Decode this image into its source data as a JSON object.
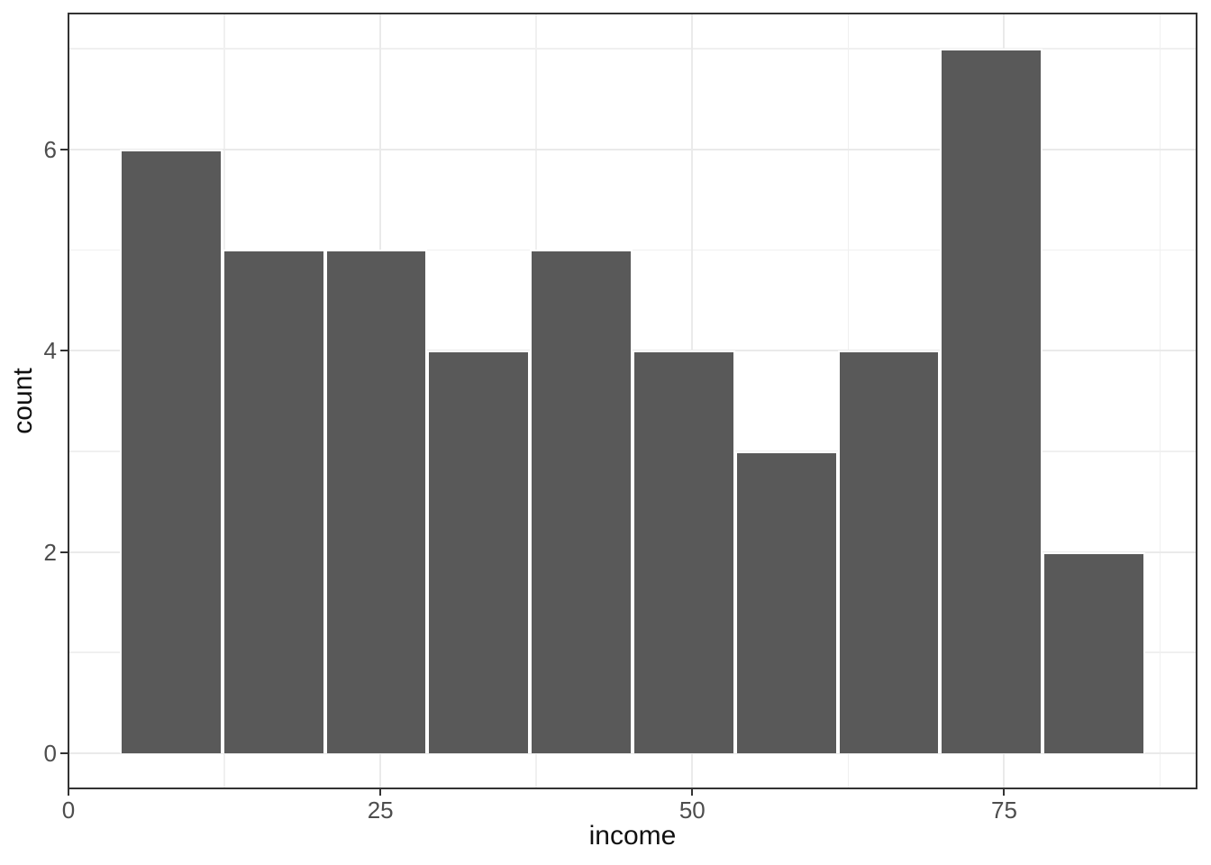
{
  "chart_data": {
    "type": "bar",
    "subtype": "histogram",
    "title": "",
    "xlabel": "income",
    "ylabel": "count",
    "x_domain": [
      0,
      90.42
    ],
    "y_domain": [
      -0.35,
      7.35
    ],
    "x_ticks": [
      {
        "value": 0,
        "label": "0"
      },
      {
        "value": 25,
        "label": "25"
      },
      {
        "value": 50,
        "label": "50"
      },
      {
        "value": 75,
        "label": "75"
      }
    ],
    "y_ticks": [
      {
        "value": 0,
        "label": "0"
      },
      {
        "value": 2,
        "label": "2"
      },
      {
        "value": 4,
        "label": "4"
      },
      {
        "value": 6,
        "label": "6"
      }
    ],
    "x_minor_gridlines": [
      12.5,
      37.5,
      62.5,
      87.5
    ],
    "y_minor_gridlines": [
      1,
      3,
      5,
      7
    ],
    "bin_edges": [
      4.11,
      12.33,
      20.55,
      28.77,
      36.99,
      45.21,
      53.43,
      61.65,
      69.87,
      78.09,
      86.31
    ],
    "counts": [
      6,
      5,
      5,
      4,
      5,
      4,
      3,
      4,
      7,
      2
    ],
    "grid": true,
    "legend_position": "none",
    "colors": {
      "bar_fill": "#595959",
      "bar_stroke": "#FFFFFF",
      "grid_major": "#EAEAEA",
      "grid_minor": "#F0F0F0",
      "panel_border": "#333333",
      "tick_mark": "#333333",
      "tick_label": "#4D4D4D",
      "axis_title": "#111111",
      "panel_background": "#FFFFFF"
    }
  }
}
